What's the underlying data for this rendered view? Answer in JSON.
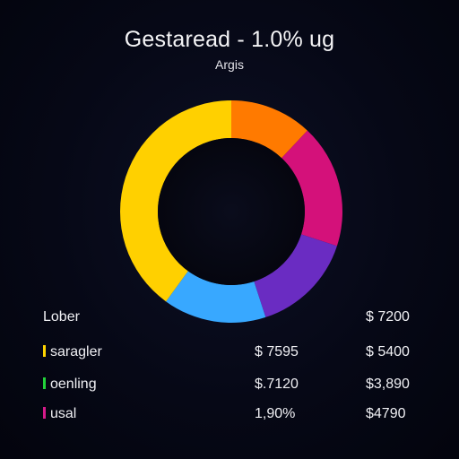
{
  "chart_data": {
    "type": "pie",
    "title": "Gestaread - 1.0% ug",
    "subtitle": "Argis",
    "slices": [
      {
        "value": 12,
        "color": "#ff7a00"
      },
      {
        "value": 18,
        "color": "#d4117a"
      },
      {
        "value": 15,
        "color": "#6a2cc2"
      },
      {
        "value": 15,
        "color": "#38a8ff"
      },
      {
        "value": 40,
        "color": "#ffd000"
      }
    ]
  },
  "table": {
    "header": {
      "label": "Lober",
      "col1": "",
      "col2": "$ 7200"
    },
    "rows": [
      {
        "label": "saragler",
        "col1": "$ 7595",
        "col2": "$ 5400",
        "color": "#ffd400"
      },
      {
        "label": "oenling",
        "col1": "$.7120",
        "col2": "$3,890",
        "color": "#22d23a"
      },
      {
        "label": "usal",
        "col1": "1,90%",
        "col2": "$4790",
        "color": "#d51a8a"
      }
    ]
  }
}
